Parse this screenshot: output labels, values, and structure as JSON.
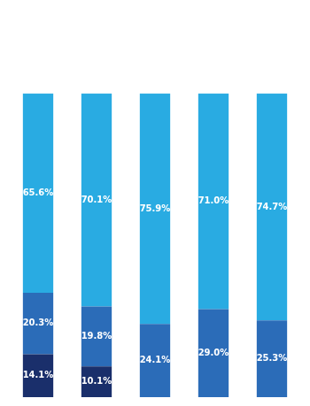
{
  "chart_data": {
    "type": "bar",
    "stacked": true,
    "data_labels": true,
    "tick_labels": false,
    "grid": false,
    "categories": [
      null,
      null,
      null,
      null,
      null
    ],
    "ylim": [
      0,
      125
    ],
    "series": [
      {
        "colors": [
          "#1A2F6B",
          "#1A2F6B",
          "#2B6CB8",
          "#2B6CB8",
          "#2B6CB8"
        ],
        "values": [
          14.1,
          10.1,
          24.1,
          29.0,
          25.3
        ],
        "value_labels": [
          "14.1%",
          "10.1%",
          "24.1%",
          "29.0%",
          "25.3%"
        ]
      },
      {
        "color": "#2B6CB8",
        "values": [
          20.3,
          19.8,
          0.0,
          0.0,
          0.0
        ],
        "value_labels": [
          "20.3%",
          "19.8%",
          null,
          null,
          null
        ]
      },
      {
        "color": "#29ABE2",
        "values": [
          65.6,
          70.1,
          75.9,
          71.0,
          74.7
        ],
        "value_labels": [
          "65.6%",
          "70.1%",
          "75.9%",
          "71.0%",
          "74.7%"
        ]
      }
    ]
  }
}
